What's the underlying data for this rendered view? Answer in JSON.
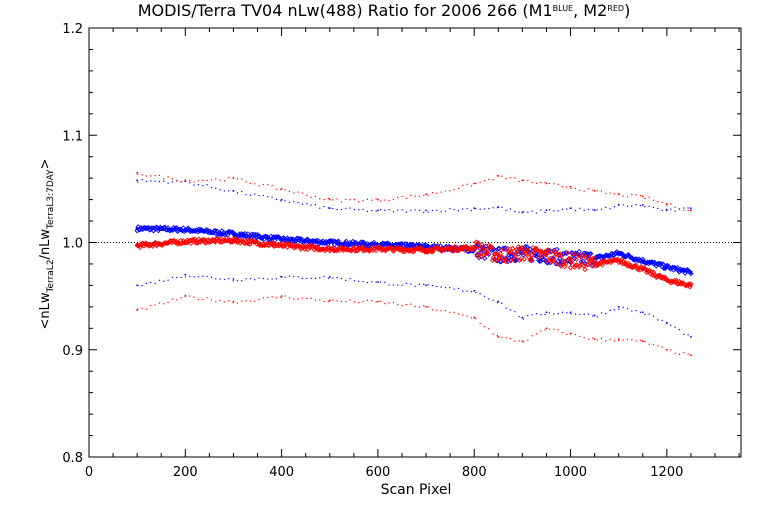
{
  "title": {
    "main": "MODIS/Terra TV04 nLw(488) Ratio for 2006 266 (M1",
    "sup1": "BLUE",
    "mid": ", M2",
    "sup2": "RED",
    "end": ")"
  },
  "ylabel": {
    "open": "<nLw",
    "sub1": "TerraL2",
    "slash": "/nLw",
    "sub2": "TerraL3:7DAY",
    "close": ">"
  },
  "colors": {
    "blue": "#0000ff",
    "red": "#ff0000",
    "axis": "#000000"
  },
  "chart_data": {
    "type": "scatter",
    "title": "MODIS/Terra TV04 nLw(488) Ratio for 2006 266 (M1BLUE, M2RED)",
    "xlabel": "Scan Pixel",
    "ylabel": "<nLwTerraL2/nLwTerraL3:7DAY>",
    "xlim": [
      0,
      1354
    ],
    "ylim": [
      0.8,
      1.2
    ],
    "x_ticks": [
      "0",
      "200",
      "400",
      "600",
      "800",
      "1000",
      "1200"
    ],
    "y_ticks": [
      "0.8",
      "0.9",
      "1.0",
      "1.1",
      "1.2"
    ],
    "reference_line": 1.0,
    "grid": false,
    "legend": "none",
    "series": [
      {
        "color": "blue",
        "role": "mean",
        "x": [
          100,
          200,
          300,
          400,
          500,
          600,
          700,
          800,
          850,
          900,
          950,
          1000,
          1050,
          1100,
          1150,
          1200,
          1250
        ],
        "y": [
          1.013,
          1.012,
          1.008,
          1.003,
          1.0,
          0.998,
          0.996,
          0.993,
          0.988,
          0.99,
          0.988,
          0.985,
          0.985,
          0.99,
          0.983,
          0.977,
          0.972
        ]
      },
      {
        "color": "red",
        "role": "mean",
        "x": [
          100,
          200,
          300,
          400,
          500,
          600,
          700,
          800,
          850,
          900,
          950,
          1000,
          1050,
          1100,
          1150,
          1200,
          1250
        ],
        "y": [
          0.997,
          1.001,
          1.002,
          0.997,
          0.994,
          0.994,
          0.993,
          0.995,
          0.988,
          0.99,
          0.988,
          0.983,
          0.98,
          0.983,
          0.975,
          0.965,
          0.96
        ]
      },
      {
        "color": "blue",
        "role": "upper",
        "x": [
          100,
          200,
          300,
          400,
          500,
          600,
          700,
          800,
          850,
          900,
          950,
          1000,
          1050,
          1100,
          1150,
          1200,
          1250
        ],
        "y": [
          1.058,
          1.057,
          1.048,
          1.04,
          1.032,
          1.03,
          1.03,
          1.032,
          1.033,
          1.028,
          1.03,
          1.032,
          1.03,
          1.035,
          1.035,
          1.03,
          1.032
        ]
      },
      {
        "color": "red",
        "role": "upper",
        "x": [
          100,
          200,
          300,
          400,
          500,
          600,
          700,
          800,
          850,
          900,
          950,
          1000,
          1050,
          1100,
          1150,
          1200,
          1250
        ],
        "y": [
          1.065,
          1.058,
          1.06,
          1.05,
          1.04,
          1.04,
          1.045,
          1.055,
          1.062,
          1.058,
          1.055,
          1.052,
          1.048,
          1.045,
          1.043,
          1.036,
          1.03
        ]
      },
      {
        "color": "blue",
        "role": "lower",
        "x": [
          100,
          200,
          300,
          400,
          500,
          600,
          700,
          800,
          850,
          900,
          950,
          1000,
          1050,
          1100,
          1150,
          1200,
          1250
        ],
        "y": [
          0.96,
          0.97,
          0.966,
          0.968,
          0.968,
          0.963,
          0.96,
          0.955,
          0.945,
          0.93,
          0.935,
          0.935,
          0.932,
          0.94,
          0.935,
          0.925,
          0.912
        ]
      },
      {
        "color": "red",
        "role": "lower",
        "x": [
          100,
          200,
          300,
          400,
          500,
          600,
          700,
          800,
          850,
          900,
          950,
          1000,
          1050,
          1100,
          1150,
          1200,
          1250
        ],
        "y": [
          0.937,
          0.95,
          0.945,
          0.95,
          0.946,
          0.945,
          0.94,
          0.93,
          0.912,
          0.908,
          0.92,
          0.915,
          0.91,
          0.91,
          0.908,
          0.9,
          0.895
        ]
      }
    ]
  }
}
